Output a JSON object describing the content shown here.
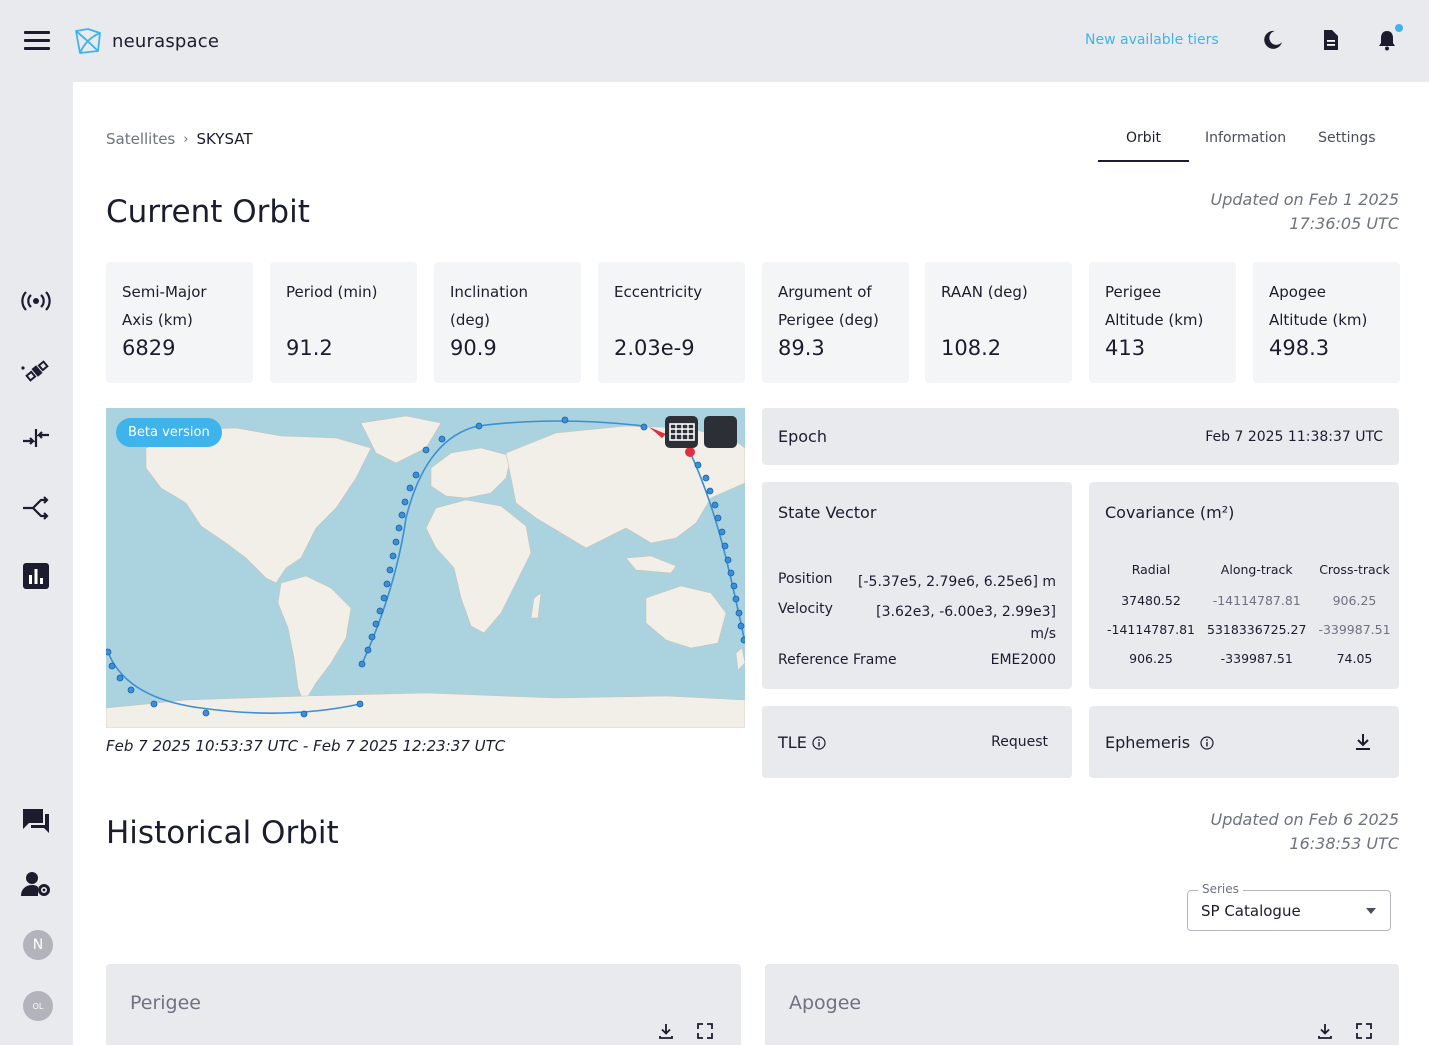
{
  "header": {
    "brand": "neuraspace",
    "tiers_link": "New available tiers"
  },
  "sidebar": {
    "avatars": [
      "N",
      "OL"
    ]
  },
  "breadcrumb": {
    "root": "Satellites",
    "separator": "›",
    "current": "SKYSAT"
  },
  "tabs": [
    "Orbit",
    "Information",
    "Settings"
  ],
  "current_orbit": {
    "title": "Current Orbit",
    "updated_line1": "Updated on Feb 1 2025",
    "updated_line2": "17:36:05 UTC",
    "kpis": [
      {
        "label": "Semi-Major Axis (km)",
        "value": "6829"
      },
      {
        "label": "Period (min)",
        "value": "91.2"
      },
      {
        "label": "Inclination (deg)",
        "value": "90.9"
      },
      {
        "label": "Eccentricity",
        "value": "2.03e-9"
      },
      {
        "label": "Argument of Perigee (deg)",
        "value": "89.3"
      },
      {
        "label": "RAAN (deg)",
        "value": "108.2"
      },
      {
        "label": "Perigee Altitude (km)",
        "value": "413"
      },
      {
        "label": "Apogee Altitude (km)",
        "value": "498.3"
      }
    ]
  },
  "map": {
    "badge": "Beta version",
    "time_range": "Feb 7 2025 10:53:37 UTC - Feb 7 2025 12:23:37 UTC"
  },
  "epoch": {
    "label": "Epoch",
    "value": "Feb 7 2025 11:38:37 UTC"
  },
  "state_vector": {
    "title": "State Vector",
    "position_label": "Position",
    "position_value": "[-5.37e5, 2.79e6, 6.25e6] m",
    "velocity_label": "Velocity",
    "velocity_value_line1": "[3.62e3, -6.00e3, 2.99e3]",
    "velocity_value_line2": "m/s",
    "frame_label": "Reference Frame",
    "frame_value": "EME2000"
  },
  "covariance": {
    "title": "Covariance (m²)",
    "headers": [
      "Radial",
      "Along-track",
      "Cross-track"
    ],
    "rows": [
      [
        "37480.52",
        "-14114787.81",
        "906.25"
      ],
      [
        "-14114787.81",
        "5318336725.27",
        "-339987.51"
      ],
      [
        "906.25",
        "-339987.51",
        "74.05"
      ]
    ]
  },
  "tle": {
    "label": "TLE",
    "action": "Request"
  },
  "ephemeris": {
    "label": "Ephemeris"
  },
  "historical_orbit": {
    "title": "Historical Orbit",
    "updated_line1": "Updated on Feb 6 2025",
    "updated_line2": "16:38:53 UTC",
    "series_label": "Series",
    "series_value": "SP Catalogue",
    "charts": [
      "Perigee",
      "Apogee"
    ]
  },
  "colors": {
    "accent": "#3fb4ec",
    "track": "#3a8fd6",
    "satellite": "#e03040",
    "ocean": "#aad3df",
    "land": "#f2efe9"
  }
}
